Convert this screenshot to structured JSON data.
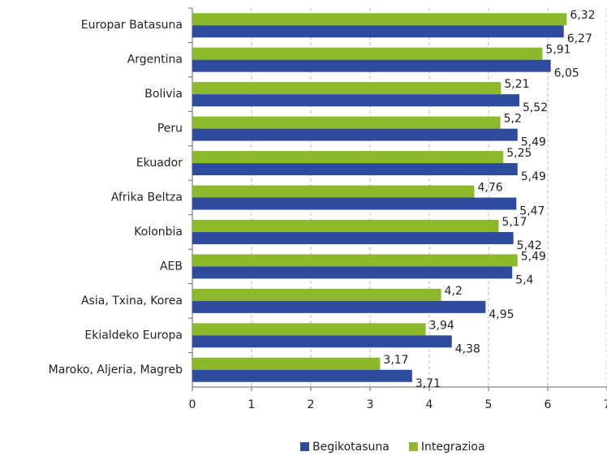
{
  "chart_data": {
    "type": "bar",
    "orientation": "horizontal",
    "categories": [
      "Europar Batasuna",
      "Argentina",
      "Bolivia",
      "Peru",
      "Ekuador",
      "Afrika Beltza",
      "Kolonbia",
      "AEB",
      "Asia, Txina, Korea",
      "Ekialdeko Europa",
      "Maroko, Aljeria, Magreb"
    ],
    "series": [
      {
        "name": "Begikotasuna",
        "color": "#2e4c9e",
        "values": [
          6.27,
          6.05,
          5.52,
          5.49,
          5.49,
          5.47,
          5.42,
          5.4,
          4.95,
          4.38,
          3.71
        ],
        "value_labels": [
          "6,27",
          "6,05",
          "5,52",
          "5,49",
          "5,49",
          "5,47",
          "5,42",
          "5,4",
          "4,95",
          "4,38",
          "3,71"
        ]
      },
      {
        "name": "Integrazioa",
        "color": "#8cb82b",
        "values": [
          6.32,
          5.91,
          5.21,
          5.2,
          5.25,
          4.76,
          5.17,
          5.49,
          4.2,
          3.94,
          3.17
        ],
        "value_labels": [
          "6,32",
          "5,91",
          "5,21",
          "5,2",
          "5,25",
          "4,76",
          "5,17",
          "5,49",
          "4,2",
          "3,94",
          "3,17"
        ]
      }
    ],
    "xlim": [
      0,
      7
    ],
    "xticks": [
      0,
      1,
      2,
      3,
      4,
      5,
      6,
      7
    ],
    "grid": true,
    "legend": "bottom"
  }
}
